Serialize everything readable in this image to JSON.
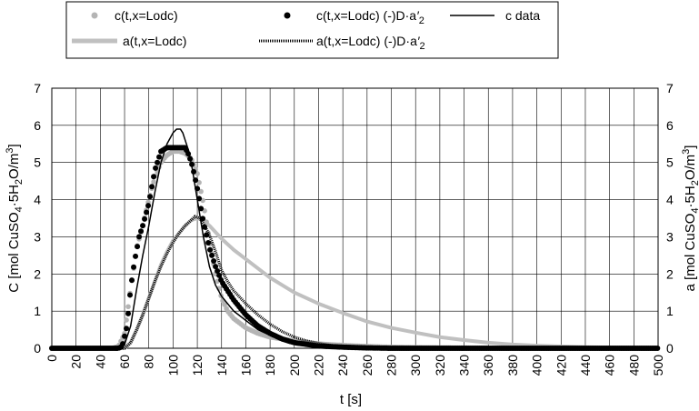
{
  "chart_data": {
    "type": "line",
    "xlabel": "t [s]",
    "ylabel_left": "C [mol CuSO4·5H2O/m3]",
    "ylabel_right": "a [mol CuSO4·5H2O/m3]",
    "xlim": [
      0,
      500
    ],
    "ylim": [
      0,
      7
    ],
    "x_ticks": [
      0,
      20,
      40,
      60,
      80,
      100,
      120,
      140,
      160,
      180,
      200,
      220,
      240,
      260,
      280,
      300,
      320,
      340,
      360,
      380,
      400,
      420,
      440,
      460,
      480,
      500
    ],
    "y_ticks": [
      0,
      1,
      2,
      3,
      4,
      5,
      6,
      7
    ],
    "grid": true,
    "legend_position": "top",
    "series": [
      {
        "name": "c(t,x=Lodc)",
        "style": "markers",
        "color": "#b4b4b4",
        "x": [
          0,
          50,
          55,
          60,
          65,
          70,
          75,
          80,
          85,
          90,
          95,
          100,
          105,
          110,
          115,
          120,
          125,
          130,
          135,
          140,
          145,
          150,
          160,
          170,
          180,
          190,
          200,
          220,
          240,
          260,
          280,
          300,
          340,
          400,
          500
        ],
        "y": [
          0,
          0,
          0.05,
          0.4,
          1.6,
          2.7,
          3.3,
          4.0,
          4.6,
          5.0,
          5.2,
          5.3,
          5.3,
          5.25,
          5.1,
          4.7,
          3.9,
          2.9,
          2.0,
          1.35,
          1.0,
          0.8,
          0.55,
          0.4,
          0.3,
          0.25,
          0.2,
          0.12,
          0.08,
          0.05,
          0.03,
          0.02,
          0.01,
          0,
          0
        ]
      },
      {
        "name": "c(t,x=Lodc) (-)D·a′2",
        "style": "markers",
        "color": "#000000",
        "x": [
          0,
          55,
          58,
          62,
          65,
          68,
          72,
          75,
          80,
          85,
          90,
          95,
          100,
          105,
          110,
          113,
          116,
          120,
          125,
          130,
          135,
          140,
          145,
          150,
          160,
          170,
          180,
          190,
          200,
          220,
          240,
          260,
          280,
          300,
          340,
          400,
          500
        ],
        "y": [
          0,
          0,
          0.05,
          0.6,
          1.6,
          2.3,
          3.0,
          3.3,
          3.9,
          4.8,
          5.3,
          5.4,
          5.4,
          5.4,
          5.4,
          5.2,
          4.9,
          4.3,
          3.4,
          2.7,
          2.2,
          1.8,
          1.55,
          1.3,
          0.9,
          0.6,
          0.4,
          0.25,
          0.15,
          0.06,
          0.03,
          0.01,
          0,
          0,
          0,
          0,
          0
        ]
      },
      {
        "name": "c data",
        "style": "line",
        "color": "#000000",
        "x": [
          0,
          55,
          60,
          65,
          70,
          75,
          80,
          85,
          90,
          95,
          100,
          103,
          106,
          108,
          110,
          113,
          116,
          120,
          125,
          130,
          135,
          140,
          145,
          150,
          160,
          170,
          180,
          190,
          200,
          210,
          220,
          240,
          260,
          300,
          400,
          500
        ],
        "y": [
          0,
          0,
          0.1,
          0.6,
          1.6,
          2.5,
          3.3,
          4.2,
          5.0,
          5.5,
          5.8,
          5.9,
          5.9,
          5.8,
          5.6,
          5.3,
          4.8,
          4.0,
          3.0,
          2.2,
          1.7,
          1.4,
          1.2,
          1.0,
          0.75,
          0.5,
          0.35,
          0.22,
          0.12,
          0.06,
          0.03,
          0.01,
          0,
          0,
          0,
          0
        ]
      },
      {
        "name": "a(t,x=Lodc)",
        "style": "thick-line",
        "color": "#c0c0c0",
        "x": [
          0,
          60,
          65,
          70,
          75,
          80,
          85,
          90,
          95,
          100,
          105,
          110,
          115,
          120,
          125,
          130,
          140,
          150,
          160,
          170,
          180,
          190,
          200,
          220,
          240,
          260,
          280,
          300,
          320,
          340,
          360,
          380,
          400,
          420,
          440,
          460,
          480,
          500
        ],
        "y": [
          0,
          0,
          0.15,
          0.5,
          0.9,
          1.35,
          1.8,
          2.25,
          2.6,
          2.9,
          3.1,
          3.3,
          3.45,
          3.5,
          3.45,
          3.3,
          2.95,
          2.65,
          2.4,
          2.15,
          1.9,
          1.7,
          1.5,
          1.2,
          0.95,
          0.72,
          0.55,
          0.42,
          0.3,
          0.22,
          0.15,
          0.1,
          0.07,
          0.05,
          0.03,
          0.02,
          0.01,
          0
        ]
      },
      {
        "name": "a(t,x=Lodc) (-)D·a′2",
        "style": "hatched-line",
        "color": "#000000",
        "x": [
          0,
          60,
          65,
          70,
          75,
          80,
          85,
          90,
          95,
          100,
          105,
          110,
          115,
          118,
          122,
          126,
          130,
          135,
          140,
          145,
          150,
          160,
          170,
          180,
          190,
          200,
          210,
          220,
          230,
          240,
          260,
          280,
          300,
          340,
          400,
          500
        ],
        "y": [
          0,
          0,
          0.15,
          0.5,
          0.9,
          1.35,
          1.8,
          2.2,
          2.55,
          2.85,
          3.1,
          3.3,
          3.45,
          3.55,
          3.5,
          3.3,
          3.05,
          2.6,
          2.1,
          1.8,
          1.55,
          1.2,
          0.9,
          0.65,
          0.45,
          0.3,
          0.2,
          0.13,
          0.08,
          0.05,
          0.02,
          0.01,
          0,
          0,
          0,
          0
        ]
      }
    ]
  }
}
